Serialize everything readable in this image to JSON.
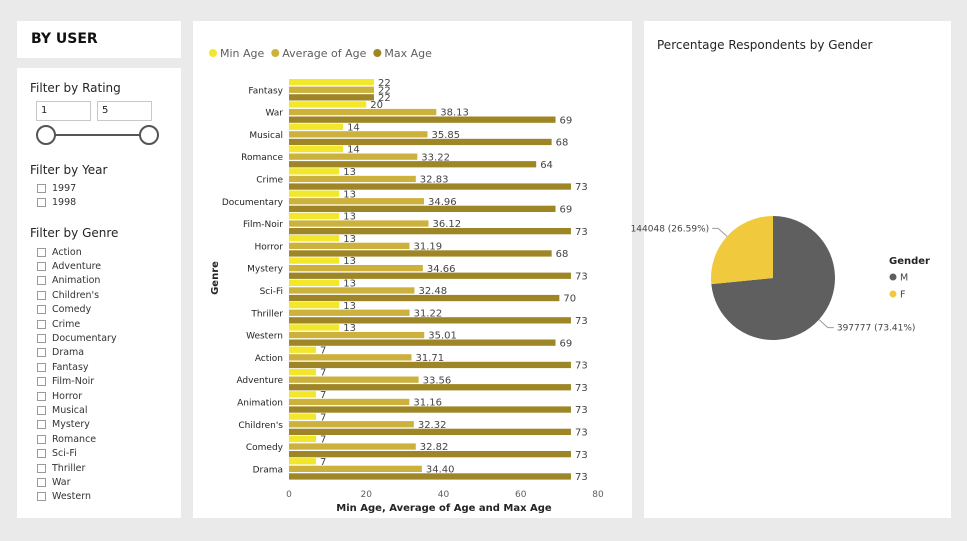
{
  "title": "BY USER",
  "filters": {
    "rating": {
      "label": "Filter by Rating",
      "min": "1",
      "max": "5"
    },
    "year": {
      "label": "Filter by Year",
      "options": [
        "1997",
        "1998"
      ]
    },
    "genre": {
      "label": "Filter by Genre",
      "options": [
        "Action",
        "Adventure",
        "Animation",
        "Children's",
        "Comedy",
        "Crime",
        "Documentary",
        "Drama",
        "Fantasy",
        "Film-Noir",
        "Horror",
        "Musical",
        "Mystery",
        "Romance",
        "Sci-Fi",
        "Thriller",
        "War",
        "Western"
      ]
    }
  },
  "colors": {
    "min": "#f2e72b",
    "avg": "#cdb13d",
    "max": "#9e8626",
    "male": "#5f5f5f",
    "female": "#f0ca3c"
  },
  "chart_data": [
    {
      "type": "bar",
      "orientation": "horizontal",
      "categories": [
        "Fantasy",
        "War",
        "Musical",
        "Romance",
        "Crime",
        "Documentary",
        "Film-Noir",
        "Horror",
        "Mystery",
        "Sci-Fi",
        "Thriller",
        "Western",
        "Action",
        "Adventure",
        "Animation",
        "Children's",
        "Comedy",
        "Drama"
      ],
      "series": [
        {
          "name": "Min Age",
          "values": [
            22,
            20,
            14,
            14,
            13,
            13,
            13,
            13,
            13,
            13,
            13,
            13,
            7,
            7,
            7,
            7,
            7,
            7
          ],
          "labels": [
            "22",
            "20",
            "14",
            "14",
            "13",
            "13",
            "13",
            "13",
            "13",
            "13",
            "13",
            "13",
            "7",
            "7",
            "7",
            "7",
            "7",
            "7"
          ]
        },
        {
          "name": "Average of Age",
          "values": [
            22,
            38.13,
            35.85,
            33.22,
            32.83,
            34.96,
            36.12,
            31.19,
            34.66,
            32.48,
            31.22,
            35.01,
            31.71,
            33.56,
            31.16,
            32.32,
            32.82,
            34.4
          ],
          "labels": [
            "22",
            "38.13",
            "35.85",
            "33.22",
            "32.83",
            "34.96",
            "36.12",
            "31.19",
            "34.66",
            "32.48",
            "31.22",
            "35.01",
            "31.71",
            "33.56",
            "31.16",
            "32.32",
            "32.82",
            "34.40"
          ]
        },
        {
          "name": "Max Age",
          "values": [
            22,
            69,
            68,
            64,
            73,
            69,
            73,
            68,
            73,
            70,
            73,
            69,
            73,
            73,
            73,
            73,
            73,
            73
          ],
          "labels": [
            "22",
            "69",
            "68",
            "64",
            "73",
            "69",
            "73",
            "68",
            "73",
            "70",
            "73",
            "69",
            "73",
            "73",
            "73",
            "73",
            "73",
            "73"
          ]
        }
      ],
      "xlabel": "Min Age, Average of Age and Max Age",
      "ylabel": "Genre",
      "xlim": [
        0,
        80
      ],
      "xticks": [
        "0",
        "20",
        "40",
        "60",
        "80"
      ],
      "legend": "top-left"
    },
    {
      "type": "pie",
      "title": "Percentage Respondents by Gender",
      "legend_title": "Gender",
      "slices": [
        {
          "name": "M",
          "value": 397777,
          "label": "397777 (73.41%)"
        },
        {
          "name": "F",
          "value": 144048,
          "label": "144048 (26.59%)"
        }
      ],
      "legend": "right"
    }
  ]
}
